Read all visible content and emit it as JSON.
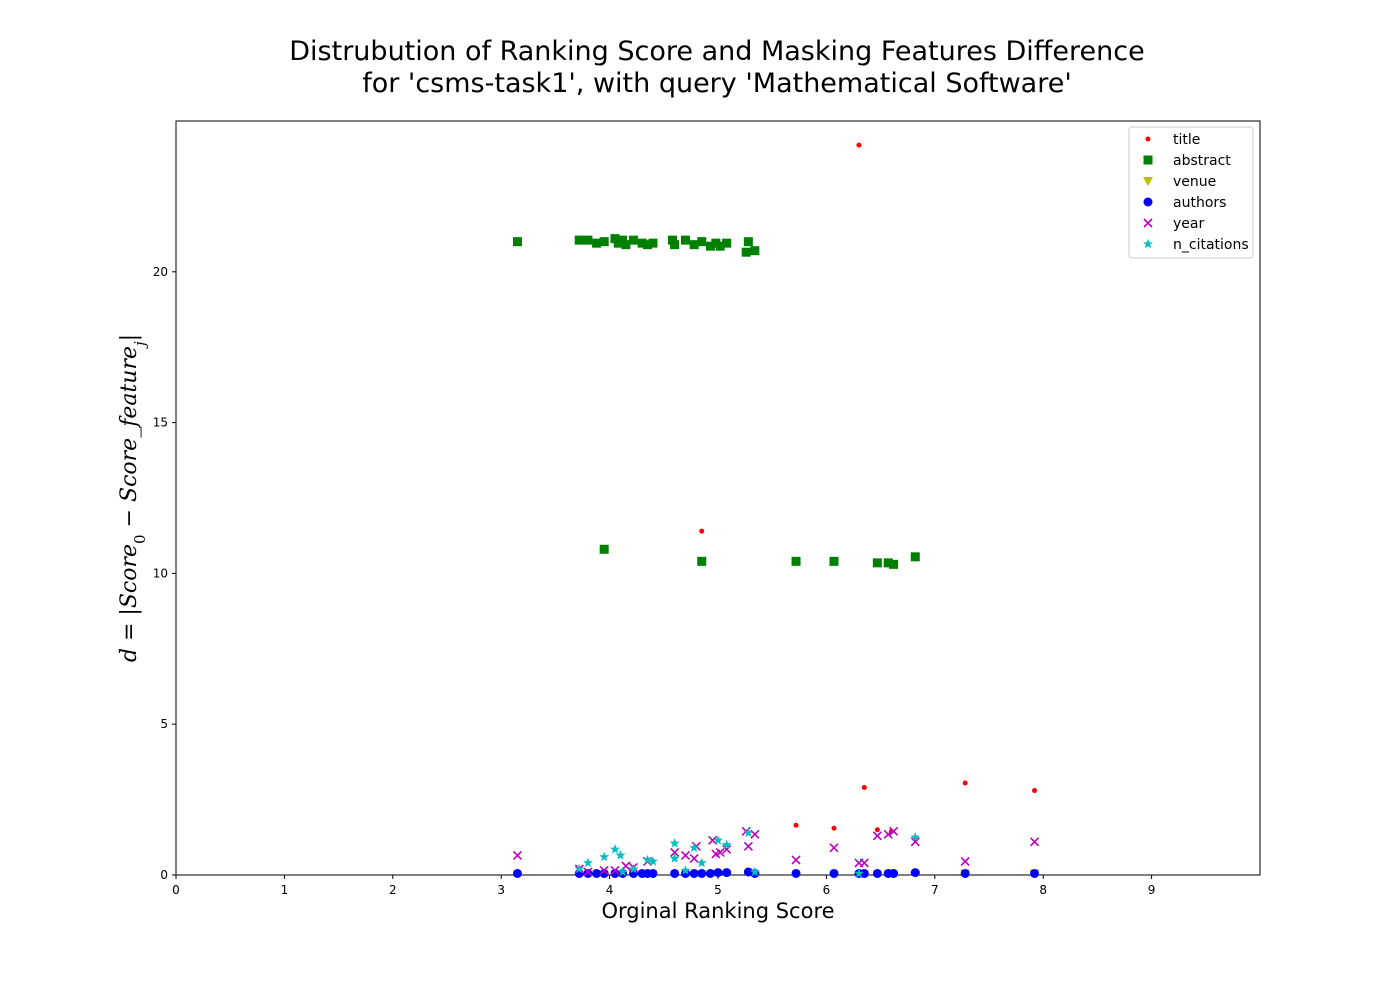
{
  "chart_data": {
    "type": "scatter",
    "title_lines": [
      "Distrubution of Ranking Score and Masking Features Difference",
      "for 'csms-task1', with query 'Mathematical Software'"
    ],
    "xlabel": "Orginal Ranking Score",
    "ylabel": "d = |Score_0 − Score_feature_j|",
    "xlim": [
      0,
      10
    ],
    "ylim": [
      0,
      25
    ],
    "x_ticks": [
      "0",
      "1",
      "2",
      "3",
      "4",
      "5",
      "6",
      "7",
      "8",
      "9"
    ],
    "y_ticks": [
      "0",
      "5",
      "10",
      "15",
      "20"
    ],
    "grid": false,
    "legend_position": "top-right",
    "series": [
      {
        "name": "title",
        "marker": "point",
        "color": "#ff0000",
        "points": [
          [
            6.3,
            24.2
          ],
          [
            4.85,
            11.4
          ],
          [
            6.35,
            2.9
          ],
          [
            7.28,
            3.05
          ],
          [
            7.92,
            2.8
          ],
          [
            5.72,
            1.65
          ],
          [
            6.07,
            1.55
          ],
          [
            6.47,
            1.5
          ],
          [
            6.6,
            1.45
          ],
          [
            6.82,
            1.2
          ]
        ]
      },
      {
        "name": "abstract",
        "marker": "square",
        "color": "#008000",
        "points": [
          [
            3.15,
            21.0
          ],
          [
            3.72,
            21.05
          ],
          [
            3.8,
            21.05
          ],
          [
            3.88,
            20.95
          ],
          [
            3.95,
            21.0
          ],
          [
            4.05,
            21.1
          ],
          [
            4.08,
            20.95
          ],
          [
            4.12,
            21.05
          ],
          [
            4.15,
            20.9
          ],
          [
            4.22,
            21.05
          ],
          [
            4.3,
            20.95
          ],
          [
            4.35,
            20.9
          ],
          [
            4.4,
            20.95
          ],
          [
            4.58,
            21.05
          ],
          [
            4.6,
            20.9
          ],
          [
            4.7,
            21.05
          ],
          [
            4.78,
            20.9
          ],
          [
            4.85,
            21.0
          ],
          [
            4.93,
            20.85
          ],
          [
            4.98,
            20.95
          ],
          [
            5.02,
            20.85
          ],
          [
            5.08,
            20.95
          ],
          [
            5.26,
            20.65
          ],
          [
            5.28,
            21.0
          ],
          [
            5.34,
            20.7
          ],
          [
            3.95,
            10.8
          ],
          [
            4.85,
            10.4
          ],
          [
            5.72,
            10.4
          ],
          [
            6.07,
            10.4
          ],
          [
            6.47,
            10.35
          ],
          [
            6.57,
            10.35
          ],
          [
            6.62,
            10.3
          ],
          [
            6.82,
            10.55
          ]
        ]
      },
      {
        "name": "venue",
        "marker": "triangle-down",
        "color": "#bfbf00",
        "points": [
          [
            7.28,
            0.05
          ],
          [
            7.92,
            0.05
          ]
        ]
      },
      {
        "name": "authors",
        "marker": "circle",
        "color": "#0000ff",
        "points": [
          [
            3.15,
            0.05
          ],
          [
            3.72,
            0.05
          ],
          [
            3.8,
            0.05
          ],
          [
            3.88,
            0.05
          ],
          [
            3.95,
            0.05
          ],
          [
            4.05,
            0.05
          ],
          [
            4.12,
            0.05
          ],
          [
            4.22,
            0.05
          ],
          [
            4.3,
            0.05
          ],
          [
            4.35,
            0.05
          ],
          [
            4.4,
            0.05
          ],
          [
            4.6,
            0.05
          ],
          [
            4.7,
            0.05
          ],
          [
            4.78,
            0.05
          ],
          [
            4.85,
            0.05
          ],
          [
            4.93,
            0.05
          ],
          [
            5.0,
            0.08
          ],
          [
            5.08,
            0.08
          ],
          [
            5.28,
            0.1
          ],
          [
            5.34,
            0.05
          ],
          [
            5.72,
            0.05
          ],
          [
            6.07,
            0.05
          ],
          [
            6.3,
            0.05
          ],
          [
            6.35,
            0.05
          ],
          [
            6.47,
            0.05
          ],
          [
            6.57,
            0.05
          ],
          [
            6.62,
            0.05
          ],
          [
            6.82,
            0.08
          ],
          [
            7.28,
            0.05
          ],
          [
            7.92,
            0.05
          ]
        ]
      },
      {
        "name": "year",
        "marker": "x",
        "color": "#bf00bf",
        "points": [
          [
            3.15,
            0.65
          ],
          [
            3.72,
            0.2
          ],
          [
            3.8,
            0.1
          ],
          [
            3.95,
            0.15
          ],
          [
            4.05,
            0.15
          ],
          [
            4.15,
            0.3
          ],
          [
            4.22,
            0.25
          ],
          [
            4.35,
            0.45
          ],
          [
            4.6,
            0.75
          ],
          [
            4.7,
            0.65
          ],
          [
            4.78,
            0.55
          ],
          [
            4.8,
            0.95
          ],
          [
            4.95,
            1.15
          ],
          [
            4.98,
            0.7
          ],
          [
            5.02,
            0.75
          ],
          [
            5.08,
            0.85
          ],
          [
            5.26,
            1.45
          ],
          [
            5.28,
            0.95
          ],
          [
            5.34,
            1.35
          ],
          [
            5.72,
            0.5
          ],
          [
            6.07,
            0.9
          ],
          [
            6.3,
            0.4
          ],
          [
            6.35,
            0.4
          ],
          [
            6.47,
            1.3
          ],
          [
            6.57,
            1.35
          ],
          [
            6.62,
            1.45
          ],
          [
            6.82,
            1.1
          ],
          [
            7.28,
            0.45
          ],
          [
            7.92,
            1.1
          ]
        ]
      },
      {
        "name": "n_citations",
        "marker": "star",
        "color": "#00bfbf",
        "points": [
          [
            3.72,
            0.2
          ],
          [
            3.8,
            0.4
          ],
          [
            3.95,
            0.6
          ],
          [
            4.05,
            0.85
          ],
          [
            4.1,
            0.65
          ],
          [
            4.22,
            0.2
          ],
          [
            4.35,
            0.5
          ],
          [
            4.4,
            0.45
          ],
          [
            4.6,
            1.05
          ],
          [
            4.6,
            0.55
          ],
          [
            4.78,
            0.9
          ],
          [
            4.85,
            0.4
          ],
          [
            5.0,
            1.15
          ],
          [
            5.08,
            1.0
          ],
          [
            5.28,
            1.4
          ],
          [
            6.3,
            0.05
          ],
          [
            6.82,
            1.25
          ],
          [
            4.12,
            0.1
          ],
          [
            4.7,
            0.15
          ],
          [
            5.34,
            0.1
          ]
        ]
      }
    ]
  }
}
